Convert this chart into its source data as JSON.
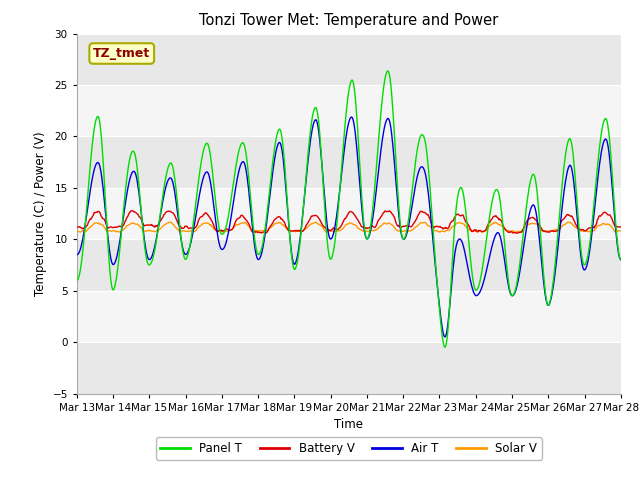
{
  "title": "Tonzi Tower Met: Temperature and Power",
  "xlabel": "Time",
  "ylabel": "Temperature (C) / Power (V)",
  "ylim": [
    -5,
    30
  ],
  "yticks": [
    -5,
    0,
    5,
    10,
    15,
    20,
    25,
    30
  ],
  "annotation_text": "TZ_tmet",
  "annotation_color": "#8B0000",
  "annotation_bg": "#FFFFC8",
  "annotation_edge": "#AAAA00",
  "fig_bg": "#FFFFFF",
  "ax_bg": "#E8E8E8",
  "band_color": "#D0D0D0",
  "x_labels": [
    "Mar 13",
    "Mar 14",
    "Mar 15",
    "Mar 16",
    "Mar 17",
    "Mar 18",
    "Mar 19",
    "Mar 20",
    "Mar 21",
    "Mar 22",
    "Mar 23",
    "Mar 24",
    "Mar 25",
    "Mar 26",
    "Mar 27",
    "Mar 28"
  ],
  "colors": {
    "panel_t": "#00DD00",
    "battery_v": "#DD0000",
    "air_t": "#0000DD",
    "solar_v": "#FF9900"
  },
  "legend_labels": [
    "Panel T",
    "Battery V",
    "Air T",
    "Solar V"
  ],
  "line_width": 1.0
}
